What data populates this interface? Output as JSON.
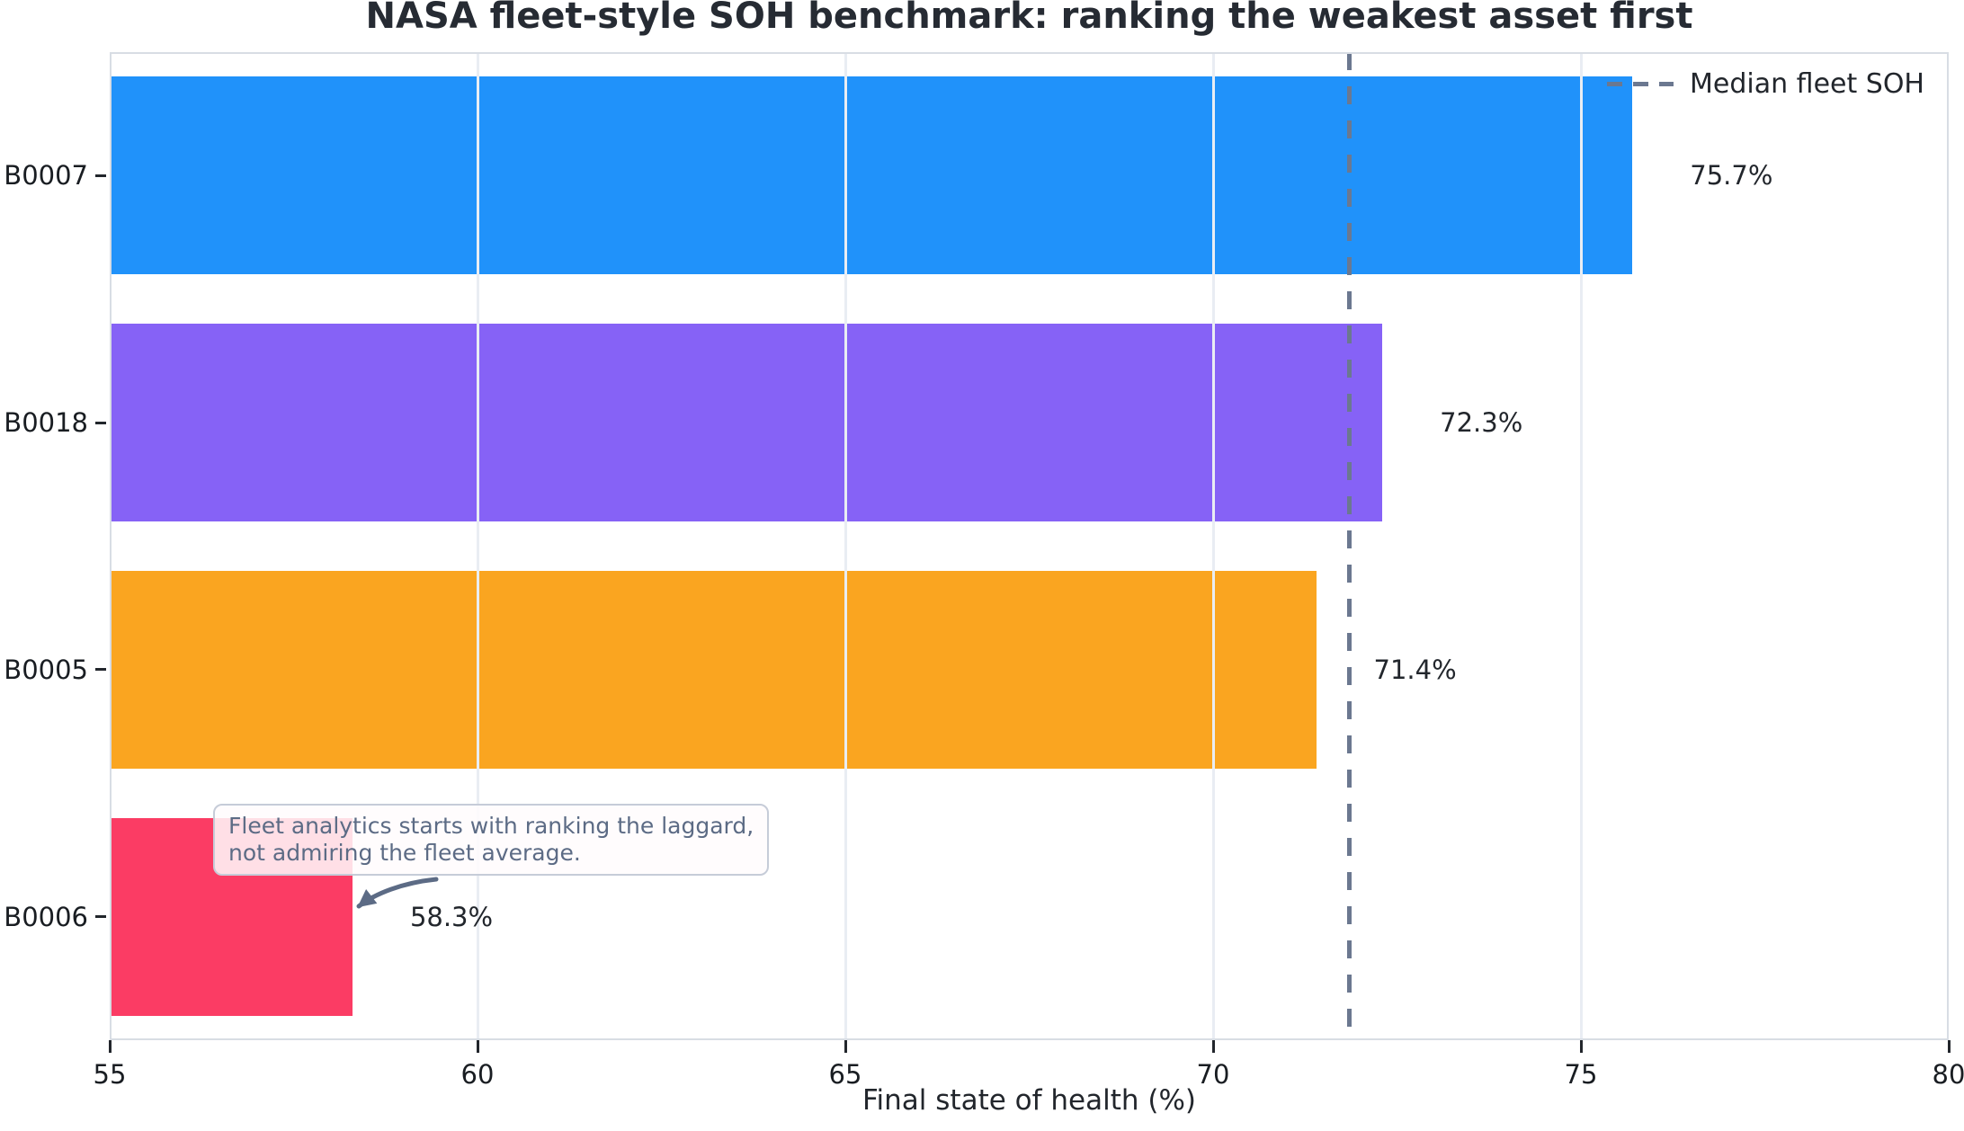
{
  "chart_data": {
    "type": "bar",
    "orientation": "horizontal",
    "title": "NASA fleet-style SOH benchmark: ranking the weakest asset first",
    "xlabel": "Final state of health (%)",
    "ylabel": "",
    "categories": [
      "B0007",
      "B0018",
      "B0005",
      "B0006"
    ],
    "values": [
      75.7,
      72.3,
      71.4,
      58.3
    ],
    "value_labels": [
      "75.7%",
      "72.3%",
      "71.4%",
      "58.3%"
    ],
    "bar_colors": [
      "#2092fa",
      "#8662f6",
      "#faa520",
      "#fb3c64"
    ],
    "xlim": [
      55,
      80
    ],
    "xticks": [
      55,
      60,
      65,
      70,
      75,
      80
    ],
    "grid": true,
    "grid_color": "#e9edf3",
    "background_color": "#ffffff",
    "median_line": {
      "value": 71.85,
      "label": "Median fleet SOH",
      "color": "#6b7890",
      "style": "dashed"
    },
    "legend": {
      "position": "upper right",
      "entries": [
        {
          "label": "Median fleet SOH",
          "style": "dashed-line",
          "color": "#6b7890"
        }
      ]
    },
    "annotation": {
      "text": "Fleet analytics starts with ranking the laggard,\nnot admiring the fleet average.",
      "text_color": "#5c6b85",
      "arrow_target_category": "B0006",
      "arrow_target_value": 58.3
    }
  }
}
